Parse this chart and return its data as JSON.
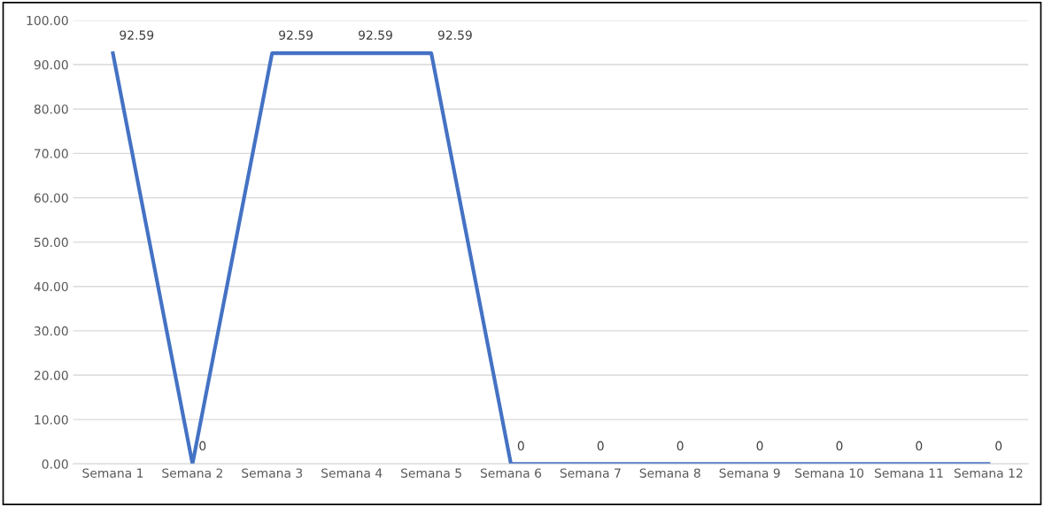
{
  "chart_data": {
    "type": "line",
    "categories": [
      "Semana 1",
      "Semana 2",
      "Semana 3",
      "Semana 4",
      "Semana 5",
      "Semana 6",
      "Semana 7",
      "Semana 8",
      "Semana 9",
      "Semana 10",
      "Semana 11",
      "Semana 12"
    ],
    "series": [
      {
        "color": "#4472c4",
        "values": [
          92.59,
          0,
          92.59,
          92.59,
          92.59,
          0,
          0,
          0,
          0,
          0,
          0,
          0
        ]
      }
    ],
    "ylim": [
      0,
      100
    ],
    "yticks": [
      {
        "value": 0,
        "label": "0.00"
      },
      {
        "value": 10,
        "label": "10.00"
      },
      {
        "value": 20,
        "label": "20.00"
      },
      {
        "value": 30,
        "label": "30.00"
      },
      {
        "value": 40,
        "label": "40.00"
      },
      {
        "value": 50,
        "label": "50.00"
      },
      {
        "value": 60,
        "label": "60.00"
      },
      {
        "value": 70,
        "label": "70.00"
      },
      {
        "value": 80,
        "label": "80.00"
      },
      {
        "value": 90,
        "label": "90.00"
      },
      {
        "value": 100,
        "label": "100.00"
      }
    ],
    "grid": "y",
    "data_labels": true,
    "marker": "none",
    "line_style": "solid"
  }
}
